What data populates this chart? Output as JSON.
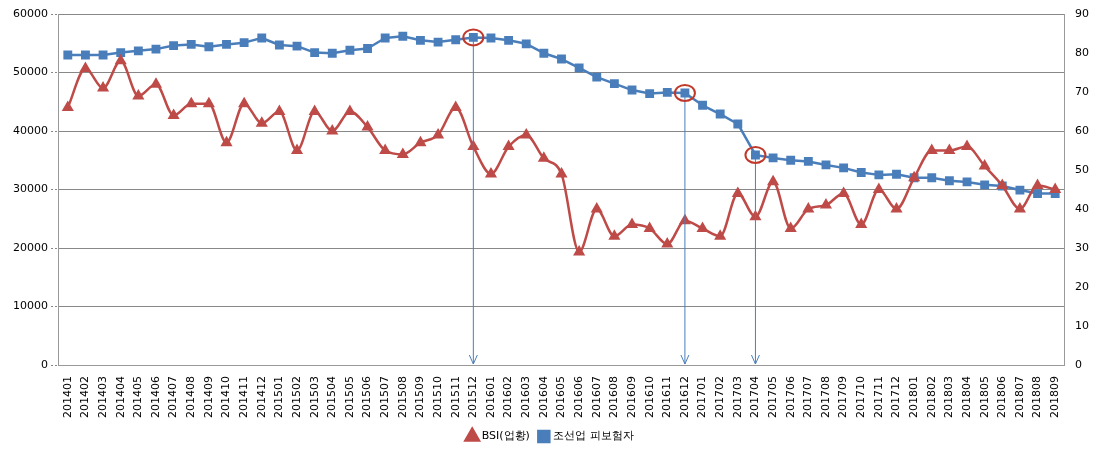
{
  "chart_data": {
    "type": "line",
    "categories": [
      "201401",
      "201402",
      "201403",
      "201404",
      "201405",
      "201406",
      "201407",
      "201408",
      "201409",
      "201410",
      "201411",
      "201412",
      "201501",
      "201502",
      "201503",
      "201504",
      "201505",
      "201506",
      "201507",
      "201508",
      "201509",
      "201510",
      "201511",
      "201512",
      "201601",
      "201602",
      "201603",
      "201604",
      "201605",
      "201606",
      "201607",
      "201608",
      "201609",
      "201610",
      "201611",
      "201612",
      "201701",
      "201702",
      "201703",
      "201704",
      "201705",
      "201706",
      "201707",
      "201708",
      "201709",
      "201710",
      "201711",
      "201712",
      "201801",
      "201802",
      "201803",
      "201804",
      "201805",
      "201806",
      "201807",
      "201808",
      "201809"
    ],
    "series": [
      {
        "name": "조선업 피보험자",
        "color": "#4a7ebb",
        "marker": "square",
        "values": [
          53000,
          53000,
          53000,
          53400,
          53700,
          54000,
          54600,
          54800,
          54400,
          54800,
          55100,
          55900,
          54700,
          54500,
          53400,
          53300,
          53800,
          54100,
          55900,
          56200,
          55500,
          55200,
          55600,
          56000,
          55900,
          55500,
          54900,
          53300,
          52300,
          50800,
          49200,
          48100,
          47000,
          46400,
          46600,
          46500,
          44400,
          42900,
          41200,
          35900,
          35400,
          35000,
          34800,
          34200,
          33700,
          32900,
          32500,
          32600,
          32000,
          32000,
          31500,
          31300,
          30800,
          30600,
          29900,
          29300,
          29300
        ]
      },
      {
        "name": "BSI(업황)",
        "color": "#be4b48",
        "marker": "triangle",
        "axis": "y2",
        "values": [
          66,
          76,
          71,
          78,
          69,
          72,
          64,
          67,
          67,
          57,
          67,
          62,
          65,
          55,
          65,
          60,
          65,
          61,
          55,
          54,
          57,
          59,
          66,
          56,
          49,
          56,
          59,
          53,
          49,
          29,
          40,
          33,
          36,
          35,
          31,
          37,
          35,
          33,
          44,
          38,
          47,
          35,
          40,
          41,
          44,
          36,
          45,
          40,
          48,
          55,
          55,
          56,
          51,
          46,
          40,
          46,
          45
        ]
      }
    ],
    "ylim": [
      0,
      60000
    ],
    "yticks": [
      0,
      10000,
      20000,
      30000,
      40000,
      50000,
      60000
    ],
    "y2lim": [
      0,
      90
    ],
    "y2ticks": [
      0,
      10,
      20,
      30,
      40,
      50,
      60,
      70,
      80,
      90
    ],
    "ref_lines": [
      {
        "axis": "x",
        "value": "201512",
        "color": "#4a7ebb"
      },
      {
        "axis": "x",
        "value": "201612",
        "color": "#4a7ebb"
      },
      {
        "axis": "x",
        "value": "201704",
        "color": "#4a7ebb"
      }
    ],
    "grid": "y",
    "legend": "bottom"
  }
}
